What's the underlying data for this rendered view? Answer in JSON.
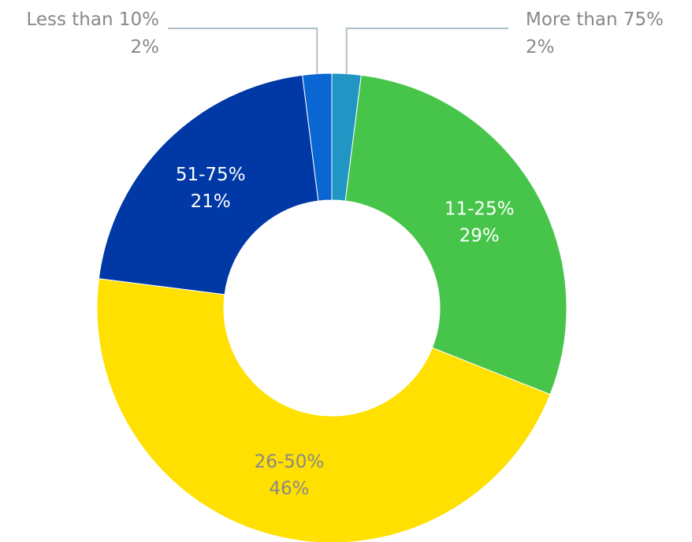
{
  "chart_data": {
    "type": "pie",
    "variant": "donut",
    "start_angle_deg": 0,
    "direction": "clockwise",
    "slices": [
      {
        "label": "More than 75%",
        "value": 2,
        "value_label": "2%",
        "color": "#2196C4",
        "label_color": "#888888",
        "label_placement": "outside-right"
      },
      {
        "label": "11-25%",
        "value": 29,
        "value_label": "29%",
        "color": "#47C54A",
        "label_color": "#ffffff",
        "label_placement": "inside"
      },
      {
        "label": "26-50%",
        "value": 46,
        "value_label": "46%",
        "color": "#FFE000",
        "label_color": "#888888",
        "label_placement": "inside"
      },
      {
        "label": "51-75%",
        "value": 21,
        "value_label": "21%",
        "color": "#0039A6",
        "label_color": "#ffffff",
        "label_placement": "inside"
      },
      {
        "label": "Less than 10%",
        "value": 2,
        "value_label": "2%",
        "color": "#0A66D2",
        "label_color": "#888888",
        "label_placement": "outside-left"
      }
    ],
    "leader_line_color": "#AEBFC8",
    "legend": "none",
    "title": ""
  }
}
